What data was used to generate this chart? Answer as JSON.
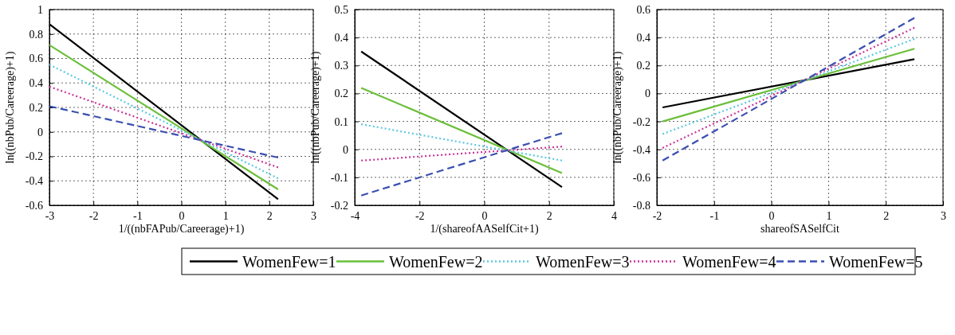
{
  "chart_data": [
    {
      "type": "line",
      "xlabel": "1/((nbFAPub/Careerage)+1)",
      "ylabel": "ln((nbPub/Careerage)+1)",
      "xlim": [
        -3,
        3
      ],
      "xticks": [
        -3,
        -2,
        -1,
        0,
        1,
        2,
        3
      ],
      "ylim": [
        -0.6,
        1
      ],
      "yticks": [
        -0.6,
        -0.4,
        -0.2,
        0,
        0.2,
        0.4,
        0.6,
        0.8,
        1
      ],
      "grid": true,
      "legend": "bottom",
      "x": [
        -3,
        2.2
      ],
      "series": [
        {
          "name": "WomenFew=1",
          "color": "#000000",
          "line_style": "solid",
          "values": [
            0.88,
            -0.55
          ]
        },
        {
          "name": "WomenFew=2",
          "color": "#6abf3a",
          "line_style": "solid",
          "values": [
            0.71,
            -0.47
          ]
        },
        {
          "name": "WomenFew=3",
          "color": "#5bc8e0",
          "line_style": "dotted",
          "values": [
            0.55,
            -0.38
          ]
        },
        {
          "name": "WomenFew=4",
          "color": "#cc3399",
          "line_style": "dotted",
          "values": [
            0.37,
            -0.29
          ]
        },
        {
          "name": "WomenFew=5",
          "color": "#3a4fb0",
          "line_style": "dashed",
          "values": [
            0.21,
            -0.21
          ]
        }
      ]
    },
    {
      "type": "line",
      "xlabel": "1/(shareofAASelfCit+1)",
      "ylabel": "ln((nbPub/Careerage)+1)",
      "xlim": [
        -4,
        4
      ],
      "xticks": [
        -4,
        -2,
        0,
        2,
        4
      ],
      "ylim": [
        -0.2,
        0.5
      ],
      "yticks": [
        -0.2,
        -0.1,
        0,
        0.1,
        0.2,
        0.3,
        0.4,
        0.5
      ],
      "grid": true,
      "x": [
        -3.8,
        2.4
      ],
      "series": [
        {
          "color": "#000000",
          "line_style": "solid",
          "values": [
            0.35,
            -0.135
          ]
        },
        {
          "color": "#6abf3a",
          "line_style": "solid",
          "values": [
            0.22,
            -0.085
          ]
        },
        {
          "color": "#5bc8e0",
          "line_style": "dotted",
          "values": [
            0.09,
            -0.04
          ]
        },
        {
          "color": "#cc3399",
          "line_style": "dotted",
          "values": [
            -0.04,
            0.01
          ]
        },
        {
          "color": "#3a4fb0",
          "line_style": "dashed",
          "values": [
            -0.165,
            0.058
          ]
        }
      ]
    },
    {
      "type": "line",
      "xlabel": "shareofSASelfCit",
      "ylabel": "ln((nbPub/Careerage)+1)",
      "xlim": [
        -2,
        3
      ],
      "xticks": [
        -2,
        -1,
        0,
        1,
        2,
        3
      ],
      "ylim": [
        -0.8,
        0.6
      ],
      "yticks": [
        -0.8,
        -0.6,
        -0.4,
        -0.2,
        0,
        0.2,
        0.4,
        0.6
      ],
      "grid": true,
      "x": [
        -1.9,
        2.5
      ],
      "series": [
        {
          "color": "#000000",
          "line_style": "solid",
          "values": [
            -0.1,
            0.245
          ]
        },
        {
          "color": "#6abf3a",
          "line_style": "solid",
          "values": [
            -0.2,
            0.32
          ]
        },
        {
          "color": "#5bc8e0",
          "line_style": "dotted",
          "values": [
            -0.29,
            0.39
          ]
        },
        {
          "color": "#cc3399",
          "line_style": "dotted",
          "values": [
            -0.39,
            0.47
          ]
        },
        {
          "color": "#3a4fb0",
          "line_style": "dashed",
          "values": [
            -0.48,
            0.54
          ]
        }
      ]
    }
  ]
}
